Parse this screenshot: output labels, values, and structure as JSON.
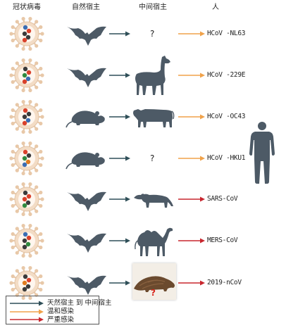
{
  "headers": {
    "virus": "冠状病毒",
    "natural_host": "自然宿主",
    "intermediate_host": "中间宿主",
    "human": "人"
  },
  "rows": [
    {
      "natural": "bat",
      "intermediate": "?",
      "label": "HCoV -NL63",
      "infection": "mild"
    },
    {
      "natural": "bat",
      "intermediate": "alpaca",
      "label": "HCoV -229E",
      "infection": "mild"
    },
    {
      "natural": "mouse",
      "intermediate": "cow",
      "label": "HCoV -OC43",
      "infection": "mild"
    },
    {
      "natural": "mouse",
      "intermediate": "?",
      "label": "HCoV -HKU1",
      "infection": "mild"
    },
    {
      "natural": "bat",
      "intermediate": "civet",
      "label": "SARS-CoV",
      "infection": "severe"
    },
    {
      "natural": "bat",
      "intermediate": "camel",
      "label": "MERS-CoV",
      "infection": "severe"
    },
    {
      "natural": "bat",
      "intermediate": "pangolin",
      "label": "2019-nCoV",
      "infection": "severe"
    }
  ],
  "pangolin_mark": "?",
  "legend": {
    "natural_to_intermediate": "天然宿主 到 中间宿主",
    "mild": "温和感染",
    "severe": "严重感染"
  },
  "colors": {
    "animal": "#4d5a66",
    "arrow_natural": "#2f4f58",
    "arrow_mild": "#f0a24a",
    "arrow_severe": "#c8262e",
    "virus_spike": "#e8c8a8",
    "virus_ring": "#f3dcc5",
    "mark_red": "#d8261c"
  }
}
